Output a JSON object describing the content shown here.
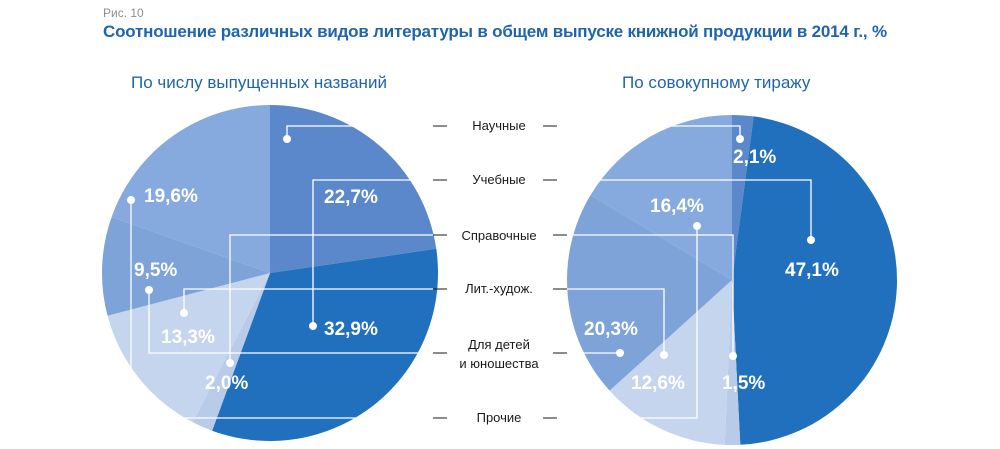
{
  "figure": {
    "label": "Рис. 10",
    "title": "Соотношение различных видов литературы в общем выпуске книжной продукции в 2014 г., %"
  },
  "categories": [
    "Научные",
    "Учебные",
    "Справочные",
    "Лит.-худож.",
    "Для детей\nи юношества",
    "Прочие"
  ],
  "colors": {
    "title": "#1f64ad",
    "slices": [
      "#5b88cb",
      "#2170bd",
      "#b8cbe8",
      "#c5d5ed",
      "#7ea3d8",
      "#86aadd"
    ],
    "leader": "#ffffff",
    "outer_leader": "#1a1a1a"
  },
  "chart_data": [
    {
      "type": "pie",
      "title": "По числу выпущенных названий",
      "categories": [
        "Научные",
        "Учебные",
        "Справочные",
        "Лит.-худож.",
        "Для детей\nи юношества",
        "Прочие"
      ],
      "values": [
        22.7,
        32.9,
        2.0,
        13.3,
        9.5,
        19.6
      ],
      "labels": [
        "22,7%",
        "32,9%",
        "2,0%",
        "13,3%",
        "9,5%",
        "19,6%"
      ]
    },
    {
      "type": "pie",
      "title": "По совокупному тиражу",
      "categories": [
        "Научные",
        "Учебные",
        "Справочные",
        "Лит.-худож.",
        "Для детей\nи юношества",
        "Прочие"
      ],
      "values": [
        2.1,
        47.1,
        1.5,
        12.6,
        20.3,
        16.4
      ],
      "labels": [
        "2,1%",
        "47,1%",
        "1,5%",
        "12,6%",
        "20,3%",
        "16,4%"
      ]
    }
  ]
}
